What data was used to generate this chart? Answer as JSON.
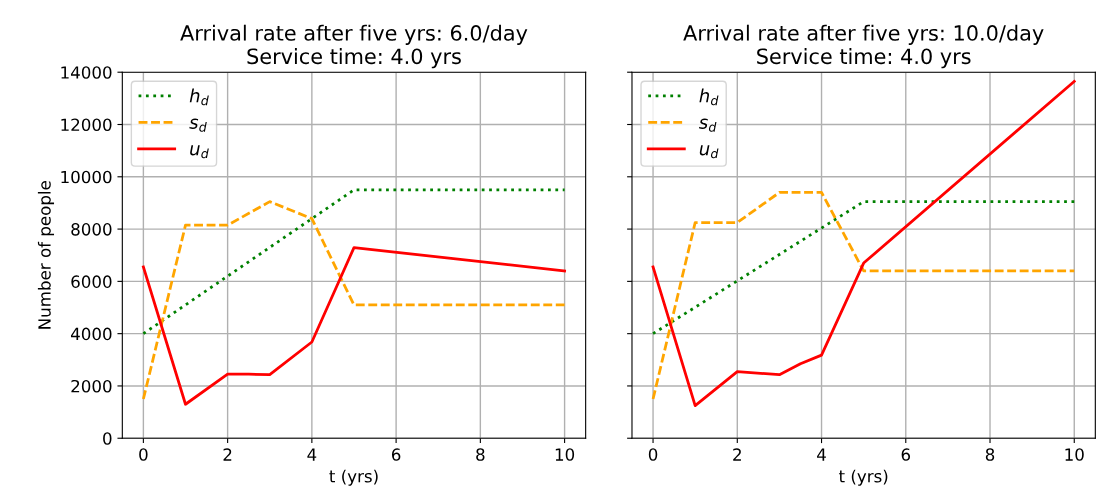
{
  "chart_data": [
    {
      "type": "line",
      "title": "Arrival rate after five yrs: 6.0/day\nService time: 4.0 yrs",
      "xlabel": "t (yrs)",
      "ylabel": "Number of people",
      "xlim": [
        -0.5,
        10.5
      ],
      "ylim": [
        0,
        14000
      ],
      "xticks": [
        0,
        2,
        4,
        6,
        8,
        10
      ],
      "yticks": [
        0,
        2000,
        4000,
        6000,
        8000,
        10000,
        12000,
        14000
      ],
      "grid": true,
      "legend": "top left",
      "series": [
        {
          "name": "h$_{d}$",
          "color": "#008000",
          "line_style": "dotted",
          "x": [
            0,
            5,
            10
          ],
          "values": [
            4000,
            9500,
            9500
          ]
        },
        {
          "name": "s$_{d}$",
          "color": "#ffa500",
          "line_style": "dashed",
          "x": [
            0,
            1,
            2,
            3,
            4,
            5,
            10
          ],
          "values": [
            1500,
            8150,
            8150,
            9050,
            8400,
            5100,
            5100
          ]
        },
        {
          "name": "u$_{d}$",
          "color": "#ff0000",
          "line_style": "solid",
          "x": [
            0,
            1,
            2,
            2.5,
            3,
            4,
            5,
            10
          ],
          "values": [
            6550,
            1300,
            2450,
            2450,
            2430,
            3680,
            7290,
            6400
          ]
        }
      ]
    },
    {
      "type": "line",
      "title": "Arrival rate after five yrs: 10.0/day\nService time: 4.0 yrs",
      "xlabel": "t (yrs)",
      "xlim": [
        -0.5,
        10.5
      ],
      "ylim": [
        0,
        14000
      ],
      "xticks": [
        0,
        2,
        4,
        6,
        8,
        10
      ],
      "yticks": [
        0,
        2000,
        4000,
        6000,
        8000,
        10000,
        12000,
        14000
      ],
      "grid": true,
      "legend": "top left",
      "tick_labels": "x",
      "series": [
        {
          "name": "h$_{d}$",
          "color": "#008000",
          "line_style": "dotted",
          "x": [
            0,
            5,
            10
          ],
          "values": [
            4000,
            9050,
            9050
          ]
        },
        {
          "name": "s$_{d}$",
          "color": "#ffa500",
          "line_style": "dashed",
          "x": [
            0,
            1,
            2,
            3,
            4,
            5,
            10
          ],
          "values": [
            1500,
            8250,
            8250,
            9400,
            9400,
            6400,
            6400
          ]
        },
        {
          "name": "u$_{d}$",
          "color": "#ff0000",
          "line_style": "solid",
          "x": [
            0,
            1,
            2,
            3,
            3.5,
            4,
            5,
            10
          ],
          "values": [
            6550,
            1250,
            2550,
            2430,
            2850,
            3180,
            6700,
            13650
          ]
        }
      ]
    }
  ]
}
